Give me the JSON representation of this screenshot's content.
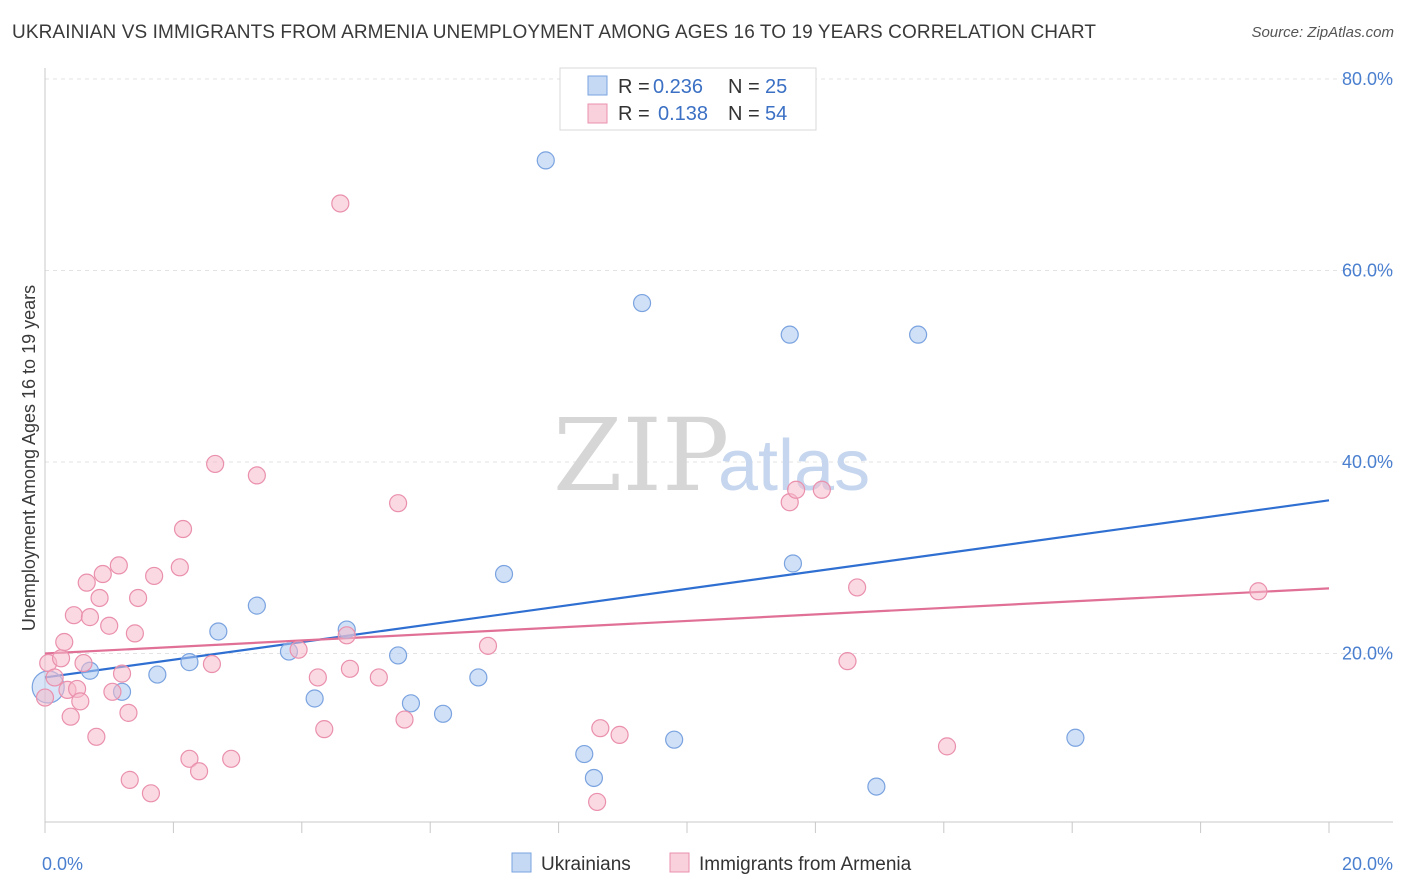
{
  "header": {
    "title": "UKRAINIAN VS IMMIGRANTS FROM ARMENIA UNEMPLOYMENT AMONG AGES 16 TO 19 YEARS CORRELATION CHART",
    "source": "Source: ZipAtlas.com"
  },
  "watermark": {
    "zip": "ZIP",
    "atlas": "atlas"
  },
  "legend": {
    "rows": [
      {
        "r_label": "R = ",
        "r_value": "0.236",
        "n_label": "N = ",
        "n_value": "25",
        "color": "#a9c6ef"
      },
      {
        "r_label": "R = ",
        "r_value": "0.138",
        "n_label": "N = ",
        "n_value": "54",
        "color": "#f5b9cb"
      }
    ]
  },
  "chart_data": {
    "type": "scatter",
    "title": "UKRAINIAN VS IMMIGRANTS FROM ARMENIA UNEMPLOYMENT AMONG AGES 16 TO 19 YEARS CORRELATION CHART",
    "xlabel": "",
    "ylabel": "Unemployment Among Ages 16 to 19 years",
    "xlim": [
      0,
      20
    ],
    "ylim": [
      0,
      80
    ],
    "x_tick_labels": [
      "0.0%",
      "20.0%"
    ],
    "y_tick_labels": [
      "20.0%",
      "40.0%",
      "60.0%",
      "80.0%"
    ],
    "y_tick_values": [
      20,
      40,
      60,
      80
    ],
    "grid": true,
    "series": [
      {
        "name": "Ukrainians",
        "color": "#a9c6ef",
        "stroke": "#7aa3e0",
        "line_color": "#2f6fd1",
        "trend": [
          [
            0,
            17.5
          ],
          [
            20,
            36
          ]
        ],
        "points": [
          [
            0.05,
            16.5
          ],
          [
            0.7,
            18.2
          ],
          [
            1.2,
            16.0
          ],
          [
            1.75,
            17.8
          ],
          [
            2.25,
            19.1
          ],
          [
            2.7,
            22.3
          ],
          [
            3.3,
            25.0
          ],
          [
            3.8,
            20.2
          ],
          [
            4.2,
            15.3
          ],
          [
            4.7,
            22.5
          ],
          [
            5.5,
            19.8
          ],
          [
            5.7,
            14.8
          ],
          [
            6.2,
            13.7
          ],
          [
            6.75,
            17.5
          ],
          [
            7.15,
            28.3
          ],
          [
            7.8,
            71.5
          ],
          [
            8.4,
            9.5
          ],
          [
            8.55,
            7.0
          ],
          [
            9.3,
            56.6
          ],
          [
            9.8,
            11.0
          ],
          [
            11.6,
            53.3
          ],
          [
            11.65,
            29.4
          ],
          [
            12.95,
            6.1
          ],
          [
            13.6,
            53.3
          ],
          [
            16.05,
            11.2
          ]
        ]
      },
      {
        "name": "Immigrants from Armenia",
        "color": "#f5b9cb",
        "stroke": "#ea90ad",
        "line_color": "#e07096",
        "trend": [
          [
            0,
            20.0
          ],
          [
            20,
            26.8
          ]
        ],
        "points": [
          [
            0.0,
            15.4
          ],
          [
            0.05,
            19.0
          ],
          [
            0.15,
            17.5
          ],
          [
            0.25,
            19.5
          ],
          [
            0.3,
            21.2
          ],
          [
            0.35,
            16.2
          ],
          [
            0.4,
            13.4
          ],
          [
            0.45,
            24.0
          ],
          [
            0.5,
            16.3
          ],
          [
            0.55,
            15.0
          ],
          [
            0.6,
            19.0
          ],
          [
            0.65,
            27.4
          ],
          [
            0.7,
            23.8
          ],
          [
            0.8,
            11.3
          ],
          [
            0.85,
            25.8
          ],
          [
            0.9,
            28.3
          ],
          [
            1.0,
            22.9
          ],
          [
            1.05,
            16.0
          ],
          [
            1.15,
            29.2
          ],
          [
            1.2,
            17.9
          ],
          [
            1.3,
            13.8
          ],
          [
            1.32,
            6.8
          ],
          [
            1.4,
            22.1
          ],
          [
            1.45,
            25.8
          ],
          [
            1.65,
            5.4
          ],
          [
            1.7,
            28.1
          ],
          [
            2.1,
            29.0
          ],
          [
            2.15,
            33.0
          ],
          [
            2.25,
            9.0
          ],
          [
            2.4,
            7.7
          ],
          [
            2.6,
            18.9
          ],
          [
            2.65,
            39.8
          ],
          [
            2.9,
            9.0
          ],
          [
            3.3,
            38.6
          ],
          [
            3.95,
            20.4
          ],
          [
            4.25,
            17.5
          ],
          [
            4.35,
            12.1
          ],
          [
            4.6,
            67.0
          ],
          [
            4.7,
            21.9
          ],
          [
            4.75,
            18.4
          ],
          [
            5.2,
            17.5
          ],
          [
            5.5,
            35.7
          ],
          [
            5.6,
            13.1
          ],
          [
            6.9,
            20.8
          ],
          [
            8.6,
            4.5
          ],
          [
            8.65,
            12.2
          ],
          [
            8.95,
            11.5
          ],
          [
            11.6,
            35.8
          ],
          [
            11.7,
            37.1
          ],
          [
            12.1,
            37.1
          ],
          [
            12.5,
            19.2
          ],
          [
            12.65,
            26.9
          ],
          [
            14.05,
            10.3
          ],
          [
            18.9,
            26.5
          ]
        ]
      }
    ]
  },
  "bottom_legend": {
    "items": [
      {
        "label": "Ukrainians",
        "color": "#a9c6ef"
      },
      {
        "label": "Immigrants from Armenia",
        "color": "#f5b9cb"
      }
    ]
  }
}
